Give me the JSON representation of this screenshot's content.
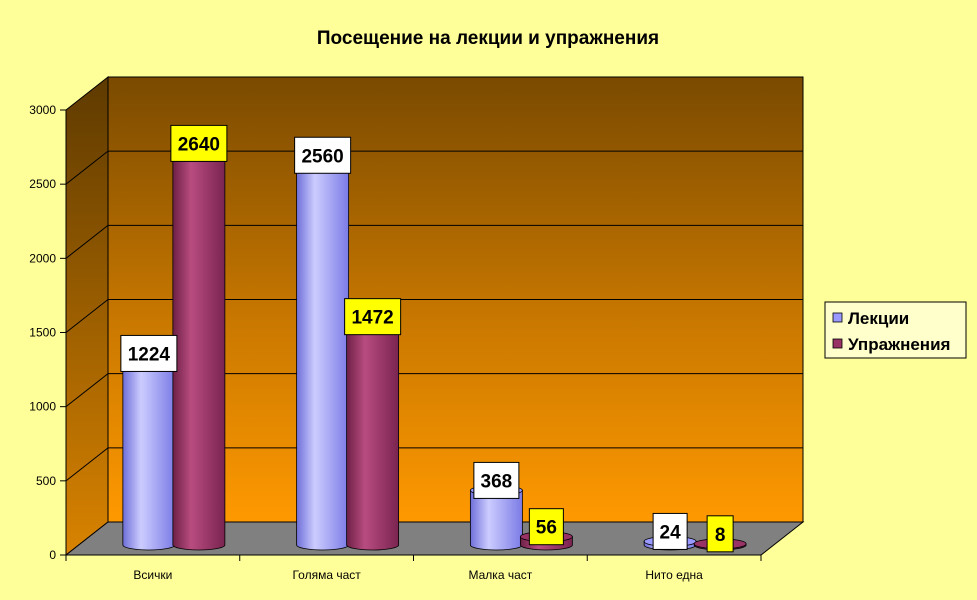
{
  "chart_data": {
    "type": "bar",
    "style": "3d-cylinder",
    "title": "Посещение на лекции и упражнения",
    "categories": [
      "Всички",
      "Голяма част",
      "Малка част",
      "Нито една"
    ],
    "series": [
      {
        "name": "Лекции",
        "values": [
          1224,
          2560,
          368,
          24
        ],
        "color": "#9999ff"
      },
      {
        "name": "Упражнения",
        "values": [
          2640,
          1472,
          56,
          8
        ],
        "color": "#993366"
      }
    ],
    "yticks": [
      "0",
      "500",
      "1000",
      "1500",
      "2000",
      "2500",
      "3000"
    ],
    "ylim": [
      0,
      3000
    ],
    "grid": true,
    "legend_position": "right",
    "colors": {
      "page_background": "#ffff99",
      "wall_top": "#7a4a00",
      "wall_bottom": "#ff9900",
      "floor": "#808080",
      "label_box_lectures": "#ffffff",
      "label_box_exercises": "#ffff00"
    }
  }
}
